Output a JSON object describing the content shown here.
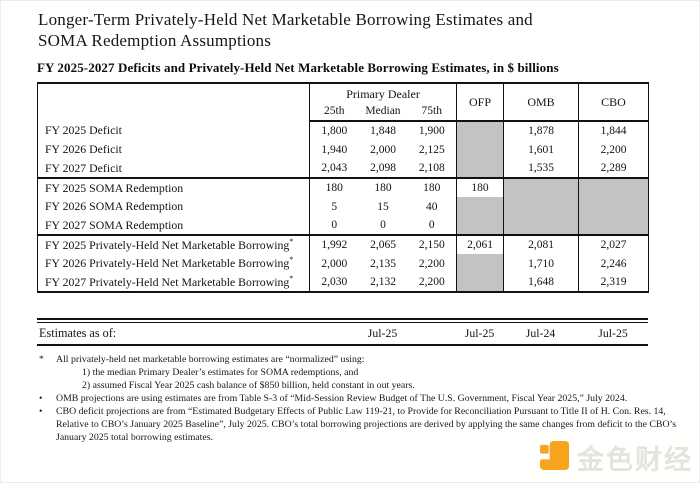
{
  "page": {
    "title_line1": "Longer-Term Privately-Held Net Marketable Borrowing Estimates and",
    "title_line2": "SOMA Redemption Assumptions",
    "table_caption": "FY 2025-2027 Deficits and Privately-Held Net Marketable Borrowing Estimates, in $ billions"
  },
  "table": {
    "header": {
      "group_label": "Primary Dealer",
      "subcols": [
        "25th",
        "Median",
        "75th"
      ],
      "single_cols": [
        "OFP",
        "OMB",
        "CBO"
      ]
    },
    "sections": [
      {
        "rows": [
          {
            "label": "FY 2025 Deficit",
            "cells": [
              "1,800",
              "1,848",
              "1,900",
              null,
              "1,878",
              "1,844"
            ]
          },
          {
            "label": "FY 2026 Deficit",
            "cells": [
              "1,940",
              "2,000",
              "2,125",
              null,
              "1,601",
              "2,200"
            ]
          },
          {
            "label": "FY 2027 Deficit",
            "cells": [
              "2,043",
              "2,098",
              "2,108",
              null,
              "1,535",
              "2,289"
            ]
          }
        ]
      },
      {
        "rows": [
          {
            "label": "FY 2025 SOMA Redemption",
            "cells": [
              "180",
              "180",
              "180",
              "180",
              null,
              null
            ]
          },
          {
            "label": "FY 2026 SOMA Redemption",
            "cells": [
              "5",
              "15",
              "40",
              null,
              null,
              null
            ]
          },
          {
            "label": "FY 2027 SOMA Redemption",
            "cells": [
              "0",
              "0",
              "0",
              null,
              null,
              null
            ]
          }
        ]
      },
      {
        "rows": [
          {
            "label": "FY 2025 Privately-Held Net Marketable Borrowing*",
            "cells": [
              "1,992",
              "2,065",
              "2,150",
              "2,061",
              "2,081",
              "2,027"
            ]
          },
          {
            "label": "FY 2026 Privately-Held Net Marketable Borrowing*",
            "cells": [
              "2,000",
              "2,135",
              "2,200",
              null,
              "1,710",
              "2,246"
            ]
          },
          {
            "label": "FY 2027 Privately-Held Net Marketable Borrowing*",
            "cells": [
              "2,030",
              "2,132",
              "2,200",
              null,
              "1,648",
              "2,319"
            ]
          }
        ]
      }
    ],
    "shaded_cell_color": "#c3c3c3"
  },
  "estimates": {
    "label": "Estimates as of:",
    "values": [
      "Jul-25",
      "Jul-25",
      "Jul-24",
      "Jul-25"
    ]
  },
  "footnotes": [
    {
      "marker": "*",
      "lines": [
        {
          "text": "All privately-held net marketable borrowing estimates are “normalized” using:",
          "indent": 0
        },
        {
          "text": "1) the median Primary Dealer’s estimates for SOMA redemptions, and",
          "indent": 1
        },
        {
          "text": "2) assumed Fiscal Year 2025 cash balance of $850 billion, held constant in out years.",
          "indent": 1
        }
      ]
    },
    {
      "marker": "•",
      "lines": [
        {
          "text": "OMB projections are using estimates are from Table S-3 of “Mid-Session Review Budget of The U.S. Government, Fiscal Year 2025,” July 2024.",
          "indent": 0
        }
      ]
    },
    {
      "marker": "•",
      "lines": [
        {
          "text": "CBO deficit projections are from “Estimated Budgetary Effects of Public Law 119-21, to Provide for Reconciliation Pursuant to Title II of H. Con. Res. 14, Relative to CBO’s January 2025 Baseline”, July 2025. CBO’s total borrowing projections are derived by applying the same changes from deficit to the CBO’s January 2025 total borrowing estimates.",
          "indent": 0
        }
      ]
    }
  ],
  "watermark": {
    "text": "金色财经",
    "icon": "jinse-finance-logo-icon",
    "icon_color": "#F7A51F"
  }
}
